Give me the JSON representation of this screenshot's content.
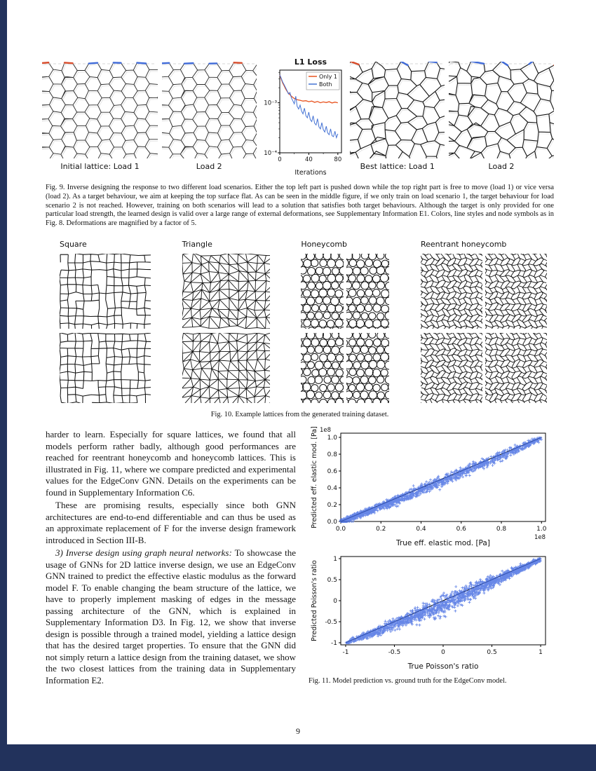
{
  "page": {
    "number": "9"
  },
  "colors": {
    "page_edge": "#22325c",
    "accent_red": "#d84b2a",
    "accent_blue": "#3f6ad8",
    "marker_blue": "#4169e1"
  },
  "figure9": {
    "panel_labels": [
      "Initial lattice: Load 1",
      "Load 2",
      "Best lattice: Load 1",
      "Load 2"
    ],
    "caption": "Fig. 9.  Inverse designing the response to two different load scenarios. Either the top left part is pushed down while the top right part is free to move (load 1) or vice versa (load 2). As a target behaviour, we aim at keeping the top surface flat. As can be seen in the middle figure, if we only train on load scenario 1, the target behaviour for load scenario 2 is not reached. However, training on both scenarios will lead to a solution that satisfies both target behaviours. Although the target is only provided for one particular load strength, the learned design is valid over a large range of external deformations, see Supplementary Information E1. Colors, line styles and node symbols as in Fig. 8. Deformations are magnified by a factor of 5."
  },
  "figure10": {
    "headers": [
      "Square",
      "Triangle",
      "Honeycomb",
      "Reentrant honeycomb"
    ],
    "caption": "Fig. 10.  Example lattices from the generated training dataset."
  },
  "body": {
    "paragraphs": [
      {
        "text": "harder to learn. Especially for square lattices, we found that all models perform rather badly, although good performances are reached for reentrant honeycomb and honeycomb lattices. This is illustrated in Fig. 11, where we compare predicted and experimental values for the EdgeConv GNN. Details on the experiments can be found in Supplementary Information C6."
      },
      {
        "text": "These are promising results, especially since both GNN architectures are end-to-end differentiable and can thus be used as an approximate replacement of F for the inverse design framework introduced in Section III-B."
      },
      {
        "lead": "3) Inverse design using graph neural networks:",
        "text": " To showcase the usage of GNNs for 2D lattice inverse design, we use an EdgeConv GNN trained to predict the effective elastic modulus as the forward model F. To enable changing the beam structure of the lattice, we have to properly implement masking of edges in the message passing architecture of the GNN, which is explained in Supplementary Information D3. In Fig. 12, we show that inverse design is possible through a trained model, yielding a lattice design that has the desired target properties. To ensure that the GNN did not simply return a lattice design from the training dataset, we show the two closest lattices from the training data in Supplementary Information E2."
      }
    ]
  },
  "figure11": {
    "caption": "Fig. 11.  Model prediction vs. ground truth for the EdgeConv model."
  },
  "chart_data": [
    {
      "id": "fig9-loss",
      "type": "line",
      "title": "L1 Loss",
      "xlabel": "Iterations",
      "yscale": "log",
      "xlim": [
        0,
        85
      ],
      "ylim": [
        0.0001,
        0.0045
      ],
      "xticks": [
        0,
        40,
        80
      ],
      "yticks": [
        {
          "v": 0.001,
          "label": "10⁻³"
        },
        {
          "v": 0.0001,
          "label": "10⁻⁴"
        }
      ],
      "legend_position": "upper right",
      "series": [
        {
          "name": "Only 1",
          "color": "#e8531f",
          "x": [
            0,
            2,
            4,
            6,
            8,
            10,
            12,
            14,
            16,
            18,
            20,
            24,
            28,
            32,
            36,
            40,
            44,
            48,
            52,
            56,
            60,
            64,
            68,
            72,
            76,
            80
          ],
          "y": [
            0.0036,
            0.003,
            0.0025,
            0.0022,
            0.0019,
            0.0017,
            0.00155,
            0.00145,
            0.00135,
            0.00128,
            0.00122,
            0.00115,
            0.00112,
            0.00108,
            0.0011,
            0.00105,
            0.00108,
            0.00102,
            0.00106,
            0.001,
            0.00104,
            0.00101,
            0.00105,
            0.00099,
            0.00103,
            0.001
          ]
        },
        {
          "name": "Both",
          "color": "#4472d4",
          "x": [
            0,
            2,
            4,
            6,
            8,
            10,
            12,
            14,
            16,
            18,
            20,
            22,
            24,
            26,
            28,
            30,
            32,
            34,
            36,
            38,
            40,
            42,
            44,
            46,
            48,
            50,
            52,
            54,
            56,
            58,
            60,
            62,
            64,
            66,
            68,
            70,
            72,
            74,
            76,
            78,
            80
          ],
          "y": [
            0.0036,
            0.0031,
            0.0026,
            0.0023,
            0.002,
            0.00175,
            0.0015,
            0.0016,
            0.00125,
            0.0011,
            0.00095,
            0.00135,
            0.00085,
            0.00075,
            0.0009,
            0.00068,
            0.0006,
            0.00078,
            0.00055,
            0.0005,
            0.00065,
            0.00046,
            0.00042,
            0.00055,
            0.00039,
            0.00036,
            0.00048,
            0.00033,
            0.0003,
            0.0004,
            0.00029,
            0.00026,
            0.00034,
            0.00025,
            0.00023,
            0.0003,
            0.00022,
            0.00021,
            0.00027,
            0.0002,
            0.00024
          ]
        }
      ]
    },
    {
      "id": "fig11-elastic",
      "type": "scatter",
      "xlabel": "True eff. elastic mod. [Pa]",
      "ylabel": "Predicted eff. elastic mod. [Pa]",
      "offset_text": "1e8",
      "xlim": [
        0,
        1.02
      ],
      "ylim": [
        0,
        1.05
      ],
      "xticks": [
        0.0,
        0.2,
        0.4,
        0.6,
        0.8,
        1.0
      ],
      "yticks": [
        0.0,
        0.2,
        0.4,
        0.6,
        0.8,
        1.0
      ],
      "tick_decimals": 1,
      "marker": "+",
      "marker_color": "#4169e1",
      "identity_line": true,
      "n_points": 1500,
      "seed": 7,
      "distribution": "points hug the identity line; very dense near zero, widest vertical spread (mostly below the line) for mid-range moduli, tight again near 1e8"
    },
    {
      "id": "fig11-poisson",
      "type": "scatter",
      "xlabel": "True Poisson's ratio",
      "ylabel": "Predicted Poisson's ratio",
      "offset_text": null,
      "xlim": [
        -1.05,
        1.05
      ],
      "ylim": [
        -1.05,
        1.05
      ],
      "xticks": [
        -1,
        -0.5,
        0,
        0.5,
        1
      ],
      "yticks": [
        -1,
        -0.5,
        0,
        0.5,
        1
      ],
      "tick_decimals": null,
      "marker": "+",
      "marker_color": "#4169e1",
      "identity_line": true,
      "n_points": 1500,
      "seed": 13,
      "distribution": "points along the identity line from (-1,-1) to (1,1); dense in the upper-right half, larger downward spread for ratios between -0.5 and 0.5"
    }
  ]
}
